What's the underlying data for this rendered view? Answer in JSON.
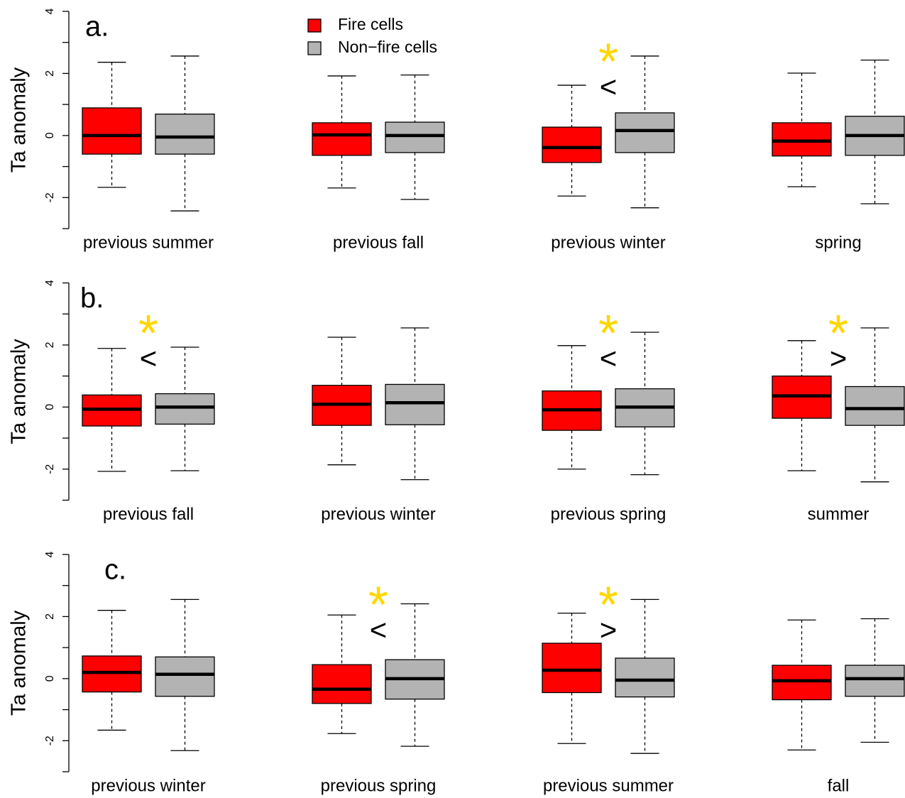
{
  "chart_data": [
    {
      "type": "box",
      "label": "a.",
      "ylabel": "Ta anomaly",
      "categories": [
        "previous summer",
        "previous fall",
        "previous winter",
        "spring"
      ],
      "series": [
        {
          "name": "Fire cells",
          "color": "#ff0000",
          "boxes": [
            {
              "whislo": -1.67,
              "q1": -0.6,
              "med": 0,
              "q3": 0.89,
              "whishi": 2.36
            },
            {
              "whislo": -1.69,
              "q1": -0.64,
              "med": 0.02,
              "q3": 0.41,
              "whishi": 1.92
            },
            {
              "whislo": -1.95,
              "q1": -0.87,
              "med": -0.39,
              "q3": 0.27,
              "whishi": 1.62
            },
            {
              "whislo": -1.65,
              "q1": -0.66,
              "med": -0.18,
              "q3": 0.41,
              "whishi": 2.01
            }
          ]
        },
        {
          "name": "Non−fire cells",
          "color": "#b3b3b3",
          "boxes": [
            {
              "whislo": -2.43,
              "q1": -0.6,
              "med": -0.05,
              "q3": 0.69,
              "whishi": 2.56
            },
            {
              "whislo": -2.06,
              "q1": -0.55,
              "med": 0,
              "q3": 0.43,
              "whishi": 1.95
            },
            {
              "whislo": -2.33,
              "q1": -0.55,
              "med": 0.16,
              "q3": 0.73,
              "whishi": 2.56
            },
            {
              "whislo": -2.2,
              "q1": -0.64,
              "med": 0,
              "q3": 0.62,
              "whishi": 2.43
            }
          ]
        }
      ],
      "significance": [
        null,
        null,
        {
          "star": "*",
          "sign": "<"
        },
        null
      ],
      "ylim": [
        -3,
        4
      ],
      "yticks": [
        -2,
        0,
        2,
        4
      ],
      "yminor": [
        -3,
        -1,
        1,
        3
      ]
    },
    {
      "type": "box",
      "label": "b.",
      "ylabel": "Ta anomaly",
      "categories": [
        "previous fall",
        "previous winter",
        "previous spring",
        "summer"
      ],
      "series": [
        {
          "color": "#ff0000",
          "boxes": [
            {
              "whislo": -2.07,
              "q1": -0.61,
              "med": -0.07,
              "q3": 0.39,
              "whishi": 1.89
            },
            {
              "whislo": -1.86,
              "q1": -0.59,
              "med": 0.09,
              "q3": 0.7,
              "whishi": 2.25
            },
            {
              "whislo": -2.0,
              "q1": -0.75,
              "med": -0.09,
              "q3": 0.52,
              "whishi": 1.98
            },
            {
              "whislo": -2.05,
              "q1": -0.36,
              "med": 0.36,
              "q3": 1.0,
              "whishi": 2.14
            }
          ]
        },
        {
          "color": "#b3b3b3",
          "boxes": [
            {
              "whislo": -2.05,
              "q1": -0.55,
              "med": 0,
              "q3": 0.43,
              "whishi": 1.93
            },
            {
              "whislo": -2.34,
              "q1": -0.57,
              "med": 0.14,
              "q3": 0.73,
              "whishi": 2.55
            },
            {
              "whislo": -2.18,
              "q1": -0.64,
              "med": 0,
              "q3": 0.59,
              "whishi": 2.41
            },
            {
              "whislo": -2.41,
              "q1": -0.59,
              "med": -0.05,
              "q3": 0.66,
              "whishi": 2.55
            }
          ]
        }
      ],
      "significance": [
        {
          "star": "*",
          "sign": "<"
        },
        null,
        {
          "star": "*",
          "sign": "<"
        },
        {
          "star": "*",
          "sign": ">"
        }
      ],
      "ylim": [
        -3,
        4
      ],
      "yticks": [
        -2,
        0,
        2,
        4
      ],
      "yminor": [
        -3,
        -1,
        1,
        3
      ]
    },
    {
      "type": "box",
      "label": "c.",
      "ylabel": "Ta anomaly",
      "categories": [
        "previous winter",
        "previous spring",
        "previous summer",
        "fall"
      ],
      "series": [
        {
          "color": "#ff0000",
          "boxes": [
            {
              "whislo": -1.66,
              "q1": -0.43,
              "med": 0.2,
              "q3": 0.73,
              "whishi": 2.2
            },
            {
              "whislo": -1.77,
              "q1": -0.8,
              "med": -0.34,
              "q3": 0.45,
              "whishi": 2.05
            },
            {
              "whislo": -2.09,
              "q1": -0.45,
              "med": 0.27,
              "q3": 1.14,
              "whishi": 2.11
            },
            {
              "whislo": -2.3,
              "q1": -0.68,
              "med": -0.07,
              "q3": 0.43,
              "whishi": 1.89
            }
          ]
        },
        {
          "color": "#b3b3b3",
          "boxes": [
            {
              "whislo": -2.32,
              "q1": -0.57,
              "med": 0.14,
              "q3": 0.7,
              "whishi": 2.55
            },
            {
              "whislo": -2.18,
              "q1": -0.66,
              "med": 0,
              "q3": 0.61,
              "whishi": 2.41
            },
            {
              "whislo": -2.41,
              "q1": -0.59,
              "med": -0.05,
              "q3": 0.66,
              "whishi": 2.55
            },
            {
              "whislo": -2.05,
              "q1": -0.57,
              "med": 0,
              "q3": 0.43,
              "whishi": 1.93
            }
          ]
        }
      ],
      "significance": [
        null,
        {
          "star": "*",
          "sign": "<"
        },
        {
          "star": "*",
          "sign": ">"
        },
        null
      ],
      "ylim": [
        -3,
        4
      ],
      "yticks": [
        -2,
        0,
        2,
        4
      ],
      "yminor": [
        -3,
        -1,
        1,
        3
      ]
    }
  ]
}
